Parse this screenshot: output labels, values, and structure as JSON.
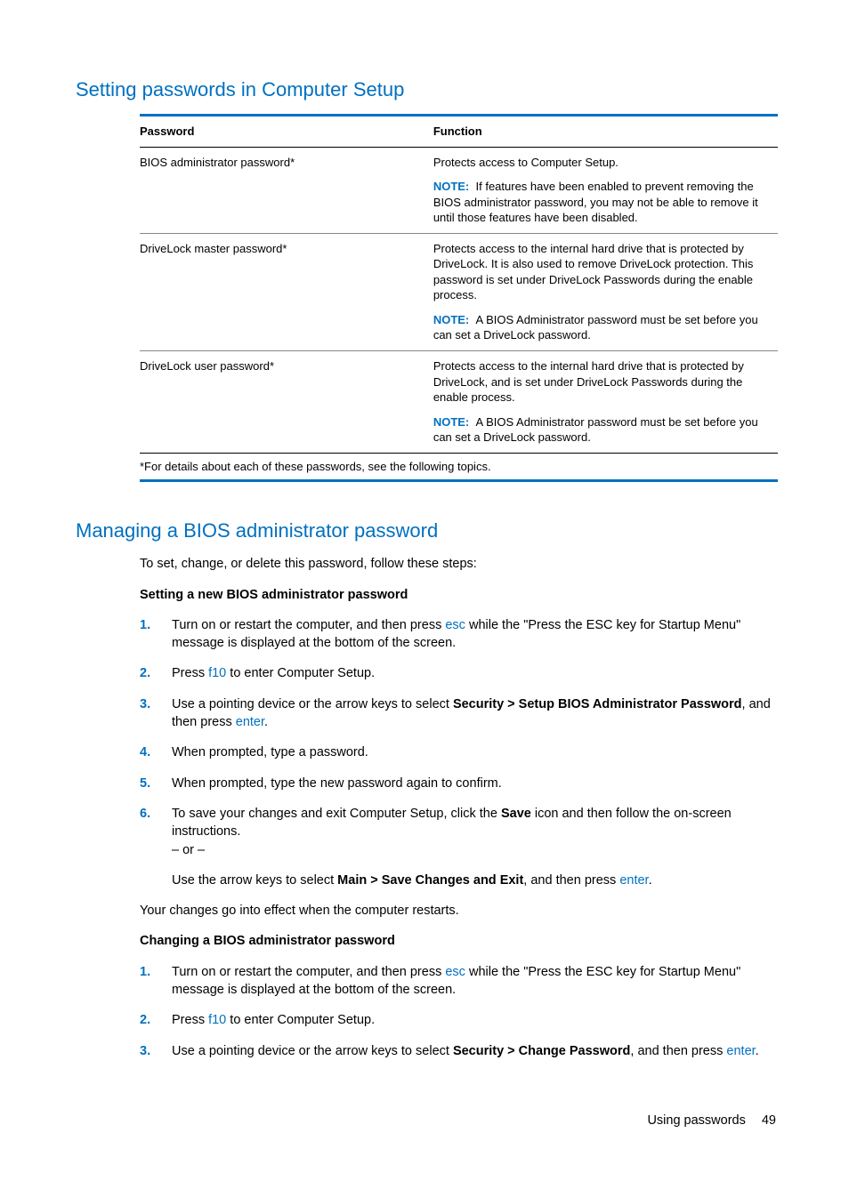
{
  "colors": {
    "accent": "#0070c0",
    "text": "#000000",
    "background": "#ffffff",
    "row_border": "#888888"
  },
  "section1": {
    "title": "Setting passwords in Computer Setup",
    "table": {
      "columns": [
        "Password",
        "Function"
      ],
      "rows": [
        {
          "password": "BIOS administrator password*",
          "function_main": "Protects access to Computer Setup.",
          "note_label": "NOTE:",
          "note_text": "If features have been enabled to prevent removing the BIOS administrator password, you may not be able to remove it until those features have been disabled."
        },
        {
          "password": "DriveLock master password*",
          "function_main": "Protects access to the internal hard drive that is protected by DriveLock. It is also used to remove DriveLock protection. This password is set under DriveLock Passwords during the enable process.",
          "note_label": "NOTE:",
          "note_text": "A BIOS Administrator password must be set before you can set a DriveLock password."
        },
        {
          "password": "DriveLock user password*",
          "function_main": "Protects access to the internal hard drive that is protected by DriveLock, and is set under DriveLock Passwords during the enable process.",
          "note_label": "NOTE:",
          "note_text": "A BIOS Administrator password must be set before you can set a DriveLock password."
        }
      ],
      "footnote": "*For details about each of these passwords, see the following topics."
    }
  },
  "section2": {
    "title": "Managing a BIOS administrator password",
    "intro": "To set, change, or delete this password, follow these steps:",
    "sub1_heading": "Setting a new BIOS administrator password",
    "sub1_steps": {
      "s1_a": "Turn on or restart the computer, and then press ",
      "s1_key": "esc",
      "s1_b": " while the \"Press the ESC key for Startup Menu\" message is displayed at the bottom of the screen.",
      "s2_a": "Press ",
      "s2_key": "f10",
      "s2_b": " to enter Computer Setup.",
      "s3_a": "Use a pointing device or the arrow keys to select ",
      "s3_bold": "Security > Setup BIOS Administrator Password",
      "s3_b": ", and then press ",
      "s3_key": "enter",
      "s3_c": ".",
      "s4": "When prompted, type a password.",
      "s5": "When prompted, type the new password again to confirm.",
      "s6_a": "To save your changes and exit Computer Setup, click the ",
      "s6_bold1": "Save",
      "s6_b": " icon and then follow the on-screen instructions.",
      "s6_or": "– or –",
      "s6_c": "Use the arrow keys to select ",
      "s6_bold2": "Main > Save Changes and Exit",
      "s6_d": ", and then press ",
      "s6_key": "enter",
      "s6_e": "."
    },
    "after_steps": "Your changes go into effect when the computer restarts.",
    "sub2_heading": "Changing a BIOS administrator password",
    "sub2_steps": {
      "s1_a": "Turn on or restart the computer, and then press ",
      "s1_key": "esc",
      "s1_b": " while the \"Press the ESC key for Startup Menu\" message is displayed at the bottom of the screen.",
      "s2_a": "Press ",
      "s2_key": "f10",
      "s2_b": " to enter Computer Setup.",
      "s3_a": "Use a pointing device or the arrow keys to select ",
      "s3_bold": "Security > Change Password",
      "s3_b": ", and then press ",
      "s3_key": "enter",
      "s3_c": "."
    },
    "nums": {
      "n1": "1.",
      "n2": "2.",
      "n3": "3.",
      "n4": "4.",
      "n5": "5.",
      "n6": "6."
    }
  },
  "footer": {
    "label": "Using passwords",
    "page": "49"
  }
}
